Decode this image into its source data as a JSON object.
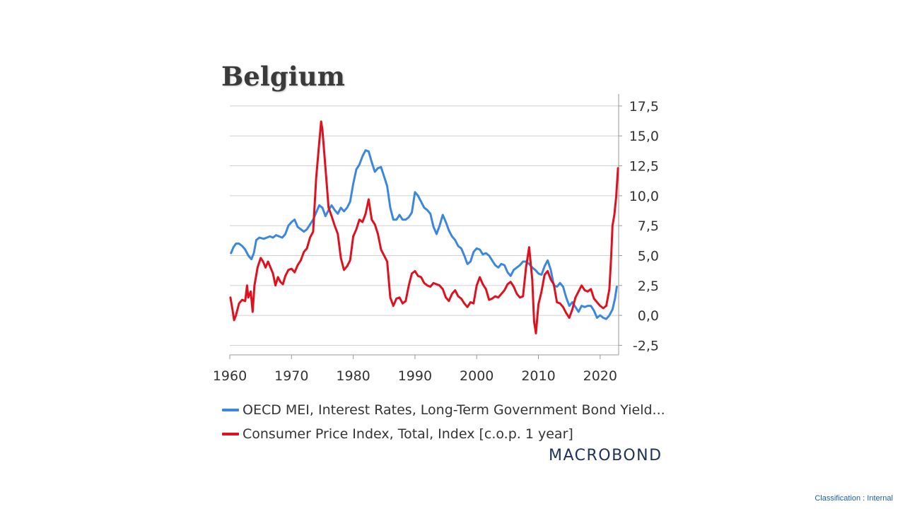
{
  "classification_label": "Classification : Internal",
  "logo_text": "MACROBOND",
  "colors": {
    "series_blue": "#3b87e0",
    "series_red": "#e0101e",
    "grid": "#d0d0d0",
    "text": "#333333"
  },
  "chart_data": {
    "type": "line",
    "title": "Belgium",
    "xlabel": "",
    "ylabel": "",
    "xlim": [
      1960,
      2023
    ],
    "ylim": [
      -3.3,
      18.5
    ],
    "x_ticks": [
      1960,
      1970,
      1980,
      1990,
      2000,
      2010,
      2020
    ],
    "x_tick_labels": [
      "1960",
      "1970",
      "1980",
      "1990",
      "2000",
      "2010",
      "2020"
    ],
    "y_ticks": [
      -2.5,
      0,
      2.5,
      5,
      7.5,
      10,
      12.5,
      15,
      17.5
    ],
    "y_tick_labels": [
      "-2,5",
      "0,0",
      "2,5",
      "5,0",
      "7,5",
      "10,0",
      "12,5",
      "15,0",
      "17,5"
    ],
    "y_axis_position": "right",
    "grid": true,
    "legend_position": "bottom",
    "series": [
      {
        "name": "OECD MEI, Interest Rates, Long-Term Government Bond Yield...",
        "color": "#3b87e0",
        "points": [
          [
            1960.2,
            5.2
          ],
          [
            1960.6,
            5.7
          ],
          [
            1961,
            6.0
          ],
          [
            1961.5,
            6.0
          ],
          [
            1962,
            5.8
          ],
          [
            1962.5,
            5.5
          ],
          [
            1963,
            5.0
          ],
          [
            1963.5,
            4.7
          ],
          [
            1963.9,
            5.2
          ],
          [
            1964.3,
            6.3
          ],
          [
            1964.8,
            6.5
          ],
          [
            1965.5,
            6.4
          ],
          [
            1966,
            6.5
          ],
          [
            1966.5,
            6.6
          ],
          [
            1967,
            6.5
          ],
          [
            1967.5,
            6.7
          ],
          [
            1968,
            6.6
          ],
          [
            1968.5,
            6.5
          ],
          [
            1969,
            6.8
          ],
          [
            1969.5,
            7.5
          ],
          [
            1970,
            7.8
          ],
          [
            1970.5,
            8.0
          ],
          [
            1971,
            7.4
          ],
          [
            1971.5,
            7.2
          ],
          [
            1972,
            7.0
          ],
          [
            1972.5,
            7.2
          ],
          [
            1973,
            7.6
          ],
          [
            1973.5,
            8.0
          ],
          [
            1974,
            8.6
          ],
          [
            1974.5,
            9.2
          ],
          [
            1975,
            9.0
          ],
          [
            1975.5,
            8.3
          ],
          [
            1976,
            8.8
          ],
          [
            1976.5,
            9.2
          ],
          [
            1977,
            8.8
          ],
          [
            1977.5,
            8.5
          ],
          [
            1978,
            9.0
          ],
          [
            1978.5,
            8.7
          ],
          [
            1979,
            9.0
          ],
          [
            1979.5,
            9.5
          ],
          [
            1980,
            11.0
          ],
          [
            1980.5,
            12.2
          ],
          [
            1981,
            12.6
          ],
          [
            1981.5,
            13.3
          ],
          [
            1982,
            13.8
          ],
          [
            1982.5,
            13.7
          ],
          [
            1983,
            12.8
          ],
          [
            1983.5,
            12.0
          ],
          [
            1984,
            12.3
          ],
          [
            1984.5,
            12.4
          ],
          [
            1985,
            11.6
          ],
          [
            1985.5,
            10.8
          ],
          [
            1986,
            9.0
          ],
          [
            1986.5,
            8.0
          ],
          [
            1987,
            8.0
          ],
          [
            1987.5,
            8.4
          ],
          [
            1988,
            8.0
          ],
          [
            1988.5,
            8.0
          ],
          [
            1989,
            8.2
          ],
          [
            1989.5,
            8.6
          ],
          [
            1990,
            10.3
          ],
          [
            1990.5,
            10.0
          ],
          [
            1991,
            9.5
          ],
          [
            1991.5,
            9.0
          ],
          [
            1992,
            8.8
          ],
          [
            1992.5,
            8.5
          ],
          [
            1993,
            7.4
          ],
          [
            1993.5,
            6.8
          ],
          [
            1994,
            7.5
          ],
          [
            1994.5,
            8.4
          ],
          [
            1995,
            7.8
          ],
          [
            1995.5,
            7.1
          ],
          [
            1996,
            6.6
          ],
          [
            1996.5,
            6.3
          ],
          [
            1997,
            5.8
          ],
          [
            1997.5,
            5.6
          ],
          [
            1998,
            5.0
          ],
          [
            1998.5,
            4.3
          ],
          [
            1999,
            4.5
          ],
          [
            1999.5,
            5.3
          ],
          [
            2000,
            5.6
          ],
          [
            2000.5,
            5.5
          ],
          [
            2001,
            5.1
          ],
          [
            2001.5,
            5.2
          ],
          [
            2002,
            5.0
          ],
          [
            2002.5,
            4.6
          ],
          [
            2003,
            4.2
          ],
          [
            2003.5,
            4.0
          ],
          [
            2004,
            4.3
          ],
          [
            2004.5,
            4.2
          ],
          [
            2005,
            3.6
          ],
          [
            2005.5,
            3.3
          ],
          [
            2006,
            3.8
          ],
          [
            2006.5,
            4.0
          ],
          [
            2007,
            4.2
          ],
          [
            2007.5,
            4.5
          ],
          [
            2008,
            4.5
          ],
          [
            2008.5,
            4.3
          ],
          [
            2009,
            4.0
          ],
          [
            2009.5,
            3.8
          ],
          [
            2010,
            3.5
          ],
          [
            2010.5,
            3.4
          ],
          [
            2011,
            4.1
          ],
          [
            2011.5,
            4.6
          ],
          [
            2012,
            3.8
          ],
          [
            2012.5,
            2.5
          ],
          [
            2013,
            2.4
          ],
          [
            2013.5,
            2.7
          ],
          [
            2014,
            2.4
          ],
          [
            2014.5,
            1.5
          ],
          [
            2015,
            0.8
          ],
          [
            2015.5,
            1.1
          ],
          [
            2016,
            0.7
          ],
          [
            2016.5,
            0.3
          ],
          [
            2017,
            0.8
          ],
          [
            2017.5,
            0.7
          ],
          [
            2018,
            0.8
          ],
          [
            2018.5,
            0.8
          ],
          [
            2019,
            0.4
          ],
          [
            2019.5,
            -0.2
          ],
          [
            2020,
            0.0
          ],
          [
            2020.5,
            -0.2
          ],
          [
            2021,
            -0.3
          ],
          [
            2021.5,
            0.0
          ],
          [
            2022,
            0.5
          ],
          [
            2022.4,
            1.4
          ],
          [
            2022.7,
            2.4
          ]
        ]
      },
      {
        "name": "Consumer Price Index, Total, Index [c.o.p. 1 year]",
        "color": "#e0101e",
        "points": [
          [
            1960.1,
            1.5
          ],
          [
            1960.4,
            0.6
          ],
          [
            1960.7,
            -0.4
          ],
          [
            1961,
            0.0
          ],
          [
            1961.5,
            1.0
          ],
          [
            1962,
            1.3
          ],
          [
            1962.5,
            1.2
          ],
          [
            1962.8,
            2.5
          ],
          [
            1963,
            1.5
          ],
          [
            1963.4,
            2.0
          ],
          [
            1963.7,
            0.3
          ],
          [
            1964,
            2.5
          ],
          [
            1964.5,
            4.0
          ],
          [
            1965,
            4.8
          ],
          [
            1965.4,
            4.5
          ],
          [
            1965.8,
            4.0
          ],
          [
            1966.2,
            4.5
          ],
          [
            1966.6,
            4.0
          ],
          [
            1967,
            3.5
          ],
          [
            1967.4,
            2.5
          ],
          [
            1967.8,
            3.2
          ],
          [
            1968.2,
            2.8
          ],
          [
            1968.6,
            2.6
          ],
          [
            1969,
            3.3
          ],
          [
            1969.5,
            3.8
          ],
          [
            1970,
            3.9
          ],
          [
            1970.5,
            3.6
          ],
          [
            1971,
            4.2
          ],
          [
            1971.5,
            4.6
          ],
          [
            1972,
            5.3
          ],
          [
            1972.5,
            5.6
          ],
          [
            1973,
            6.5
          ],
          [
            1973.5,
            7.0
          ],
          [
            1974,
            11.5
          ],
          [
            1974.5,
            14.5
          ],
          [
            1974.8,
            16.2
          ],
          [
            1975,
            15.5
          ],
          [
            1975.4,
            13.0
          ],
          [
            1975.7,
            11.0
          ],
          [
            1976,
            9.0
          ],
          [
            1976.5,
            8.3
          ],
          [
            1977,
            7.5
          ],
          [
            1977.5,
            6.8
          ],
          [
            1978,
            4.8
          ],
          [
            1978.5,
            3.8
          ],
          [
            1979,
            4.1
          ],
          [
            1979.5,
            4.6
          ],
          [
            1980,
            6.6
          ],
          [
            1980.5,
            7.2
          ],
          [
            1981,
            8.0
          ],
          [
            1981.5,
            7.8
          ],
          [
            1982,
            8.5
          ],
          [
            1982.5,
            9.7
          ],
          [
            1983,
            8.0
          ],
          [
            1983.5,
            7.6
          ],
          [
            1984,
            6.8
          ],
          [
            1984.5,
            5.5
          ],
          [
            1985,
            5.0
          ],
          [
            1985.5,
            4.5
          ],
          [
            1986,
            1.5
          ],
          [
            1986.5,
            0.8
          ],
          [
            1987,
            1.4
          ],
          [
            1987.5,
            1.5
          ],
          [
            1988,
            1.0
          ],
          [
            1988.5,
            1.2
          ],
          [
            1989,
            2.5
          ],
          [
            1989.5,
            3.5
          ],
          [
            1990,
            3.7
          ],
          [
            1990.5,
            3.3
          ],
          [
            1991,
            3.2
          ],
          [
            1991.5,
            2.7
          ],
          [
            1992,
            2.5
          ],
          [
            1992.5,
            2.4
          ],
          [
            1993,
            2.7
          ],
          [
            1993.5,
            2.6
          ],
          [
            1994,
            2.5
          ],
          [
            1994.5,
            2.2
          ],
          [
            1995,
            1.5
          ],
          [
            1995.5,
            1.2
          ],
          [
            1996,
            1.8
          ],
          [
            1996.5,
            2.1
          ],
          [
            1997,
            1.6
          ],
          [
            1997.5,
            1.4
          ],
          [
            1998,
            1.0
          ],
          [
            1998.5,
            0.7
          ],
          [
            1999,
            1.1
          ],
          [
            1999.5,
            1.0
          ],
          [
            2000,
            2.5
          ],
          [
            2000.5,
            3.2
          ],
          [
            2001,
            2.6
          ],
          [
            2001.5,
            2.2
          ],
          [
            2002,
            1.3
          ],
          [
            2002.5,
            1.4
          ],
          [
            2003,
            1.6
          ],
          [
            2003.5,
            1.5
          ],
          [
            2004,
            1.8
          ],
          [
            2004.5,
            2.1
          ],
          [
            2005,
            2.6
          ],
          [
            2005.5,
            2.8
          ],
          [
            2006,
            2.4
          ],
          [
            2006.5,
            1.8
          ],
          [
            2007,
            1.5
          ],
          [
            2007.5,
            1.6
          ],
          [
            2008,
            4.0
          ],
          [
            2008.5,
            5.7
          ],
          [
            2009,
            3.0
          ],
          [
            2009.3,
            -0.5
          ],
          [
            2009.6,
            -1.5
          ],
          [
            2010,
            0.9
          ],
          [
            2010.5,
            2.0
          ],
          [
            2011,
            3.4
          ],
          [
            2011.5,
            3.7
          ],
          [
            2012,
            3.0
          ],
          [
            2012.5,
            2.6
          ],
          [
            2013,
            1.1
          ],
          [
            2013.5,
            1.0
          ],
          [
            2014,
            0.7
          ],
          [
            2014.5,
            0.2
          ],
          [
            2015,
            -0.2
          ],
          [
            2015.5,
            0.5
          ],
          [
            2016,
            1.5
          ],
          [
            2016.5,
            2.0
          ],
          [
            2017,
            2.5
          ],
          [
            2017.5,
            2.1
          ],
          [
            2018,
            2.0
          ],
          [
            2018.5,
            2.2
          ],
          [
            2019,
            1.4
          ],
          [
            2019.5,
            1.1
          ],
          [
            2020,
            0.8
          ],
          [
            2020.5,
            0.6
          ],
          [
            2021,
            0.8
          ],
          [
            2021.5,
            2.2
          ],
          [
            2021.8,
            5.0
          ],
          [
            2022,
            7.5
          ],
          [
            2022.3,
            8.4
          ],
          [
            2022.6,
            9.9
          ],
          [
            2022.9,
            12.3
          ]
        ]
      }
    ]
  }
}
